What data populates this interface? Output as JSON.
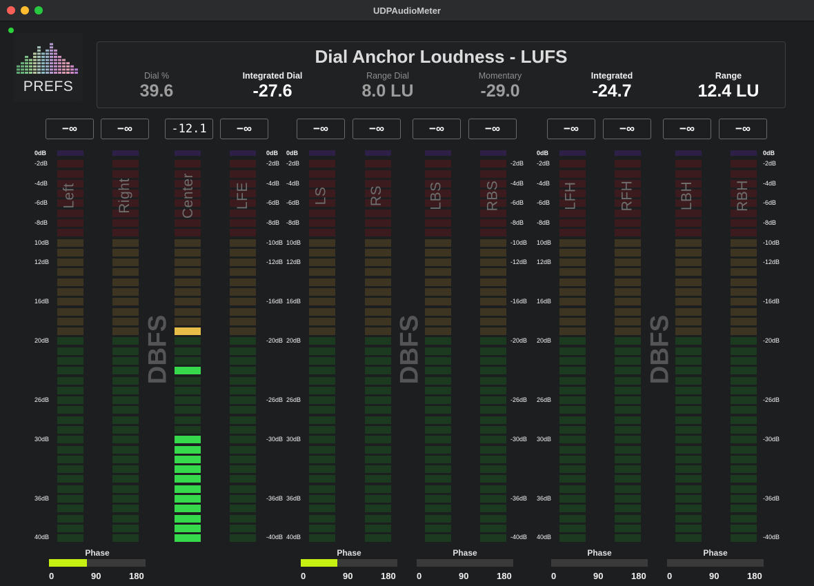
{
  "window": {
    "title": "UDPAudioMeter"
  },
  "prefs_label": "PREFS",
  "summary": {
    "title": "Dial Anchor Loudness - LUFS",
    "stats": [
      {
        "label": "Dial %",
        "value": "39.6",
        "dim": true
      },
      {
        "label": "Integrated Dial",
        "value": "-27.6",
        "dim": false
      },
      {
        "label": "Range Dial",
        "value": "8.0 LU",
        "dim": true
      },
      {
        "label": "Momentary",
        "value": "-29.0",
        "dim": true
      },
      {
        "label": "Integrated",
        "value": "-24.7",
        "dim": false
      },
      {
        "label": "Range",
        "value": "12.4 LU",
        "dim": false
      }
    ]
  },
  "meter_scale": {
    "top": "0dB",
    "left_labels": [
      "-2dB",
      "-4dB",
      "-6dB",
      "-8dB",
      "10dB",
      "12dB",
      "16dB",
      "20dB",
      "26dB",
      "30dB",
      "36dB",
      "40dB"
    ],
    "right_labels": [
      "-2dB",
      "-4dB",
      "-6dB",
      "-8dB",
      "-10dB",
      "-12dB",
      "-16dB",
      "-20dB",
      "-26dB",
      "-30dB",
      "-36dB",
      "-40dB"
    ],
    "dbfs_label": "DBFS"
  },
  "channels": [
    {
      "name": "Left",
      "peak": "−∞",
      "level_segment": null,
      "peak_hold_segment": null
    },
    {
      "name": "Right",
      "peak": "−∞",
      "level_segment": null,
      "peak_hold_segment": null
    },
    {
      "name": "Center",
      "peak": "-12.1",
      "level_segment": 11,
      "peak_hold_segment": 21
    },
    {
      "name": "LFE",
      "peak": "−∞",
      "level_segment": null,
      "peak_hold_segment": null
    },
    {
      "name": "LS",
      "peak": "−∞",
      "level_segment": null,
      "peak_hold_segment": null
    },
    {
      "name": "RS",
      "peak": "−∞",
      "level_segment": null,
      "peak_hold_segment": null
    },
    {
      "name": "LBS",
      "peak": "−∞",
      "level_segment": null,
      "peak_hold_segment": null
    },
    {
      "name": "RBS",
      "peak": "−∞",
      "level_segment": null,
      "peak_hold_segment": null
    },
    {
      "name": "LFH",
      "peak": "−∞",
      "level_segment": null,
      "peak_hold_segment": null
    },
    {
      "name": "RFH",
      "peak": "−∞",
      "level_segment": null,
      "peak_hold_segment": null
    },
    {
      "name": "LBH",
      "peak": "−∞",
      "level_segment": null,
      "peak_hold_segment": null
    },
    {
      "name": "RBH",
      "peak": "−∞",
      "level_segment": null,
      "peak_hold_segment": null
    }
  ],
  "center_extra_segment": 17,
  "phase": {
    "label": "Phase",
    "ticks": [
      "0",
      "90",
      "180"
    ],
    "meters": [
      {
        "fill_fraction": 0.39
      },
      {
        "fill_fraction": 0.38
      },
      {
        "fill_fraction": 0
      },
      {
        "fill_fraction": 0
      },
      {
        "fill_fraction": 0
      }
    ]
  },
  "colors": {
    "green_on": "#36d84c",
    "green_off": "#1b3a1f",
    "yellow_on": "#e8be48",
    "yellow_off": "#3d3421",
    "red_off": "#3c1b1f",
    "purple_off": "#2e1f47",
    "phase_fill": "#c6ef12"
  }
}
